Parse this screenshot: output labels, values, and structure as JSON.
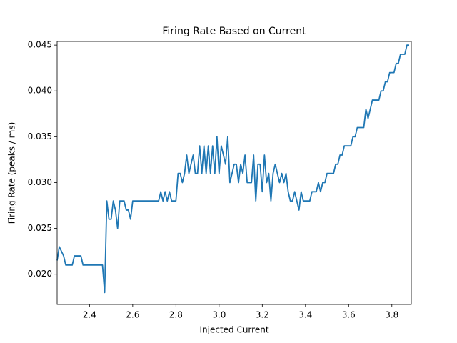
{
  "chart_data": {
    "type": "line",
    "title": "Firing Rate Based on Current",
    "x_label": "Injected Current",
    "y_label": "Firing Rate (peaks / ms)",
    "color": "#1f77b4",
    "x": [
      2.25,
      2.26,
      2.28,
      2.29,
      2.32,
      2.33,
      2.36,
      2.37,
      2.46,
      2.47,
      2.48,
      2.49,
      2.5,
      2.51,
      2.52,
      2.53,
      2.54,
      2.56,
      2.57,
      2.58,
      2.59,
      2.6,
      2.72,
      2.73,
      2.74,
      2.75,
      2.76,
      2.77,
      2.78,
      2.8,
      2.81,
      2.82,
      2.83,
      2.84,
      2.85,
      2.86,
      2.87,
      2.88,
      2.89,
      2.9,
      2.91,
      2.92,
      2.93,
      2.94,
      2.95,
      2.96,
      2.97,
      2.98,
      2.99,
      3.0,
      3.01,
      3.02,
      3.03,
      3.04,
      3.05,
      3.06,
      3.07,
      3.08,
      3.09,
      3.1,
      3.11,
      3.12,
      3.13,
      3.15,
      3.16,
      3.17,
      3.18,
      3.19,
      3.2,
      3.21,
      3.22,
      3.23,
      3.24,
      3.25,
      3.26,
      3.27,
      3.28,
      3.29,
      3.3,
      3.31,
      3.32,
      3.33,
      3.34,
      3.35,
      3.36,
      3.37,
      3.38,
      3.39,
      3.42,
      3.43,
      3.45,
      3.46,
      3.47,
      3.48,
      3.49,
      3.5,
      3.53,
      3.54,
      3.55,
      3.56,
      3.57,
      3.58,
      3.61,
      3.62,
      3.63,
      3.64,
      3.67,
      3.68,
      3.69,
      3.7,
      3.71,
      3.74,
      3.75,
      3.76,
      3.77,
      3.78,
      3.79,
      3.81,
      3.82,
      3.83,
      3.84,
      3.86,
      3.87,
      3.88
    ],
    "values": [
      0.0215,
      0.023,
      0.022,
      0.021,
      0.021,
      0.022,
      0.022,
      0.021,
      0.021,
      0.018,
      0.028,
      0.026,
      0.026,
      0.028,
      0.027,
      0.025,
      0.028,
      0.028,
      0.027,
      0.027,
      0.026,
      0.028,
      0.028,
      0.029,
      0.028,
      0.029,
      0.028,
      0.029,
      0.028,
      0.028,
      0.031,
      0.031,
      0.03,
      0.031,
      0.033,
      0.031,
      0.032,
      0.033,
      0.031,
      0.031,
      0.034,
      0.031,
      0.034,
      0.031,
      0.034,
      0.031,
      0.034,
      0.031,
      0.035,
      0.031,
      0.034,
      0.033,
      0.032,
      0.035,
      0.03,
      0.031,
      0.032,
      0.032,
      0.03,
      0.032,
      0.031,
      0.033,
      0.03,
      0.03,
      0.033,
      0.028,
      0.032,
      0.032,
      0.029,
      0.033,
      0.03,
      0.031,
      0.028,
      0.031,
      0.032,
      0.031,
      0.03,
      0.031,
      0.03,
      0.031,
      0.029,
      0.028,
      0.028,
      0.029,
      0.028,
      0.027,
      0.029,
      0.028,
      0.028,
      0.029,
      0.029,
      0.03,
      0.029,
      0.03,
      0.03,
      0.031,
      0.031,
      0.032,
      0.032,
      0.033,
      0.033,
      0.034,
      0.034,
      0.035,
      0.035,
      0.036,
      0.036,
      0.038,
      0.037,
      0.038,
      0.039,
      0.039,
      0.04,
      0.04,
      0.041,
      0.041,
      0.042,
      0.042,
      0.043,
      0.043,
      0.044,
      0.044,
      0.045,
      0.045
    ],
    "xlim": [
      2.25,
      3.89
    ],
    "ylim": [
      0.0167,
      0.0454
    ],
    "xticks": [
      2.4,
      2.6,
      2.8,
      {
        "value": 3,
        "label": "3.0"
      },
      3.2,
      3.4,
      3.6,
      3.8
    ],
    "yticks": [
      {
        "value": 0.02,
        "label": "0.020"
      },
      0.025,
      {
        "value": 0.03,
        "label": "0.030"
      },
      0.035,
      {
        "value": 0.04,
        "label": "0.040"
      },
      0.045
    ]
  }
}
